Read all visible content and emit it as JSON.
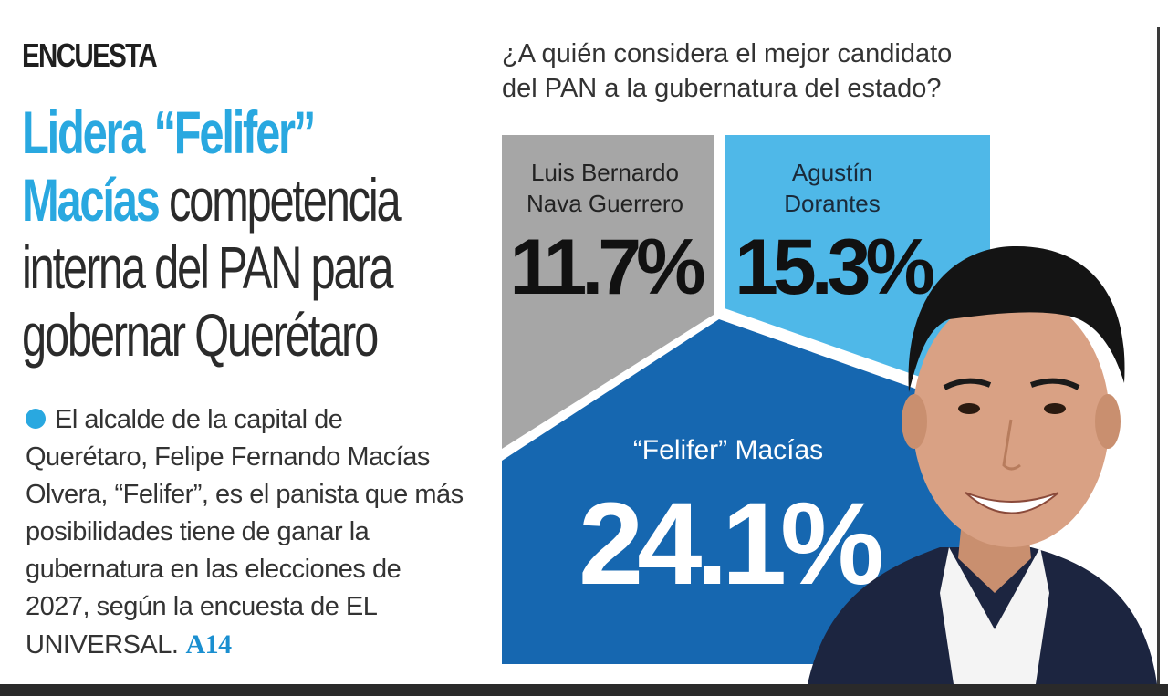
{
  "kicker": "ENCUESTA",
  "headline": {
    "highlight": "Lidera “Felifer” Macías",
    "rest_line1": "competencia",
    "line3": "interna del PAN para",
    "line4": "gobernar Querétaro"
  },
  "body": {
    "text": "El alcalde de la capital de Querétaro, Felipe Fernando Macías Olvera, “Felifer”, es el panista que más posibilidades tiene de ganar la gubernatura en las elecciones de 2027, según la encuesta de EL UNIVERSAL.",
    "page_ref": "A14"
  },
  "chart_data": {
    "type": "pie",
    "question_line1": "¿A quién considera el mejor candidato",
    "question_line2": "del PAN a la gubernatura del estado?",
    "segments": [
      {
        "name_line1": "Luis Bernardo",
        "name_line2": "Nava Guerrero",
        "value": 11.7,
        "value_label": "11.7%",
        "color": "#a6a6a6"
      },
      {
        "name_line1": "Agustín",
        "name_line2": "Dorantes",
        "value": 15.3,
        "value_label": "15.3%",
        "color": "#4fb8e8"
      },
      {
        "name_line1": "“Felifer” Macías",
        "name_line2": "",
        "value": 24.1,
        "value_label": "24.1%",
        "color": "#1667b0"
      }
    ]
  },
  "colors": {
    "accent": "#29a8e0",
    "dark_blue": "#1667b0",
    "text": "#333333"
  }
}
